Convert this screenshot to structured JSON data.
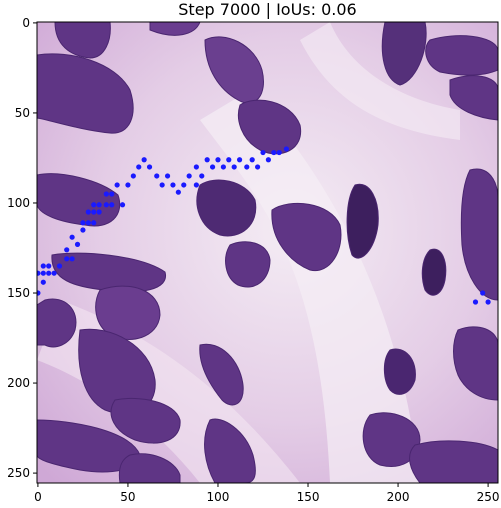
{
  "title": "Step 7000 | IoUs: 0.06",
  "image": {
    "x_range": [
      0,
      255
    ],
    "y_range": [
      0,
      255
    ],
    "x_ticks": [
      0,
      50,
      100,
      150,
      200,
      250
    ],
    "y_ticks": [
      0,
      50,
      100,
      150,
      200,
      250
    ]
  },
  "colors": {
    "background": "#e6cde8",
    "nucleus": "#5a2f80",
    "nucleus_dark": "#3d1f5e",
    "stroma": "#f3e9f3",
    "points": "#1a1aff"
  },
  "chart_data": {
    "type": "scatter",
    "title": "Step 7000 | IoUs: 0.06",
    "xlim": [
      0,
      255
    ],
    "ylim": [
      255,
      0
    ],
    "series": [
      {
        "points": [
          [
            0,
            150
          ],
          [
            0,
            139
          ],
          [
            3,
            139
          ],
          [
            3,
            144
          ],
          [
            3,
            135
          ],
          [
            6,
            139
          ],
          [
            6,
            135
          ],
          [
            9,
            139
          ],
          [
            12,
            135
          ],
          [
            16,
            131
          ],
          [
            16,
            126
          ],
          [
            19,
            119
          ],
          [
            19,
            131
          ],
          [
            22,
            123
          ],
          [
            25,
            115
          ],
          [
            25,
            111
          ],
          [
            28,
            105
          ],
          [
            28,
            111
          ],
          [
            31,
            101
          ],
          [
            31,
            105
          ],
          [
            31,
            111
          ],
          [
            34,
            105
          ],
          [
            34,
            101
          ],
          [
            38,
            101
          ],
          [
            38,
            95
          ],
          [
            41,
            101
          ],
          [
            41,
            95
          ],
          [
            44,
            90
          ],
          [
            47,
            101
          ],
          [
            50,
            90
          ],
          [
            53,
            85
          ],
          [
            56,
            80
          ],
          [
            59,
            76
          ],
          [
            62,
            80
          ],
          [
            66,
            85
          ],
          [
            69,
            90
          ],
          [
            72,
            85
          ],
          [
            75,
            90
          ],
          [
            78,
            94
          ],
          [
            81,
            90
          ],
          [
            84,
            85
          ],
          [
            88,
            90
          ],
          [
            88,
            80
          ],
          [
            91,
            85
          ],
          [
            94,
            76
          ],
          [
            97,
            80
          ],
          [
            100,
            76
          ],
          [
            103,
            80
          ],
          [
            106,
            76
          ],
          [
            109,
            80
          ],
          [
            112,
            76
          ],
          [
            116,
            80
          ],
          [
            119,
            76
          ],
          [
            122,
            80
          ],
          [
            125,
            72
          ],
          [
            128,
            76
          ],
          [
            131,
            72
          ],
          [
            134,
            72
          ],
          [
            138,
            70
          ],
          [
            243,
            155
          ],
          [
            247,
            150
          ],
          [
            250,
            155
          ]
        ]
      }
    ]
  }
}
